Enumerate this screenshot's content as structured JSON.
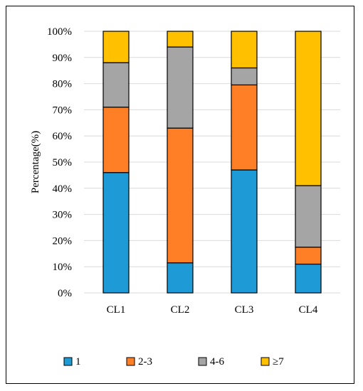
{
  "chart_data": {
    "type": "bar",
    "stacked": true,
    "categories": [
      "CL1",
      "CL2",
      "CL3",
      "CL4"
    ],
    "series": [
      {
        "name": "1",
        "color": "#1E9BD7",
        "values": [
          46,
          11.5,
          47,
          11
        ]
      },
      {
        "name": "2-3",
        "color": "#FF7F27",
        "values": [
          25,
          51.5,
          32.5,
          6.5
        ]
      },
      {
        "name": "4-6",
        "color": "#A5A5A5",
        "values": [
          17,
          31,
          6.5,
          23.5
        ]
      },
      {
        "name": "≥7",
        "color": "#FFC000",
        "values": [
          12,
          6,
          14,
          59
        ]
      }
    ],
    "ylabel": "Percentage(%)",
    "ylim": [
      0,
      100
    ],
    "yticks": [
      0,
      10,
      20,
      30,
      40,
      50,
      60,
      70,
      80,
      90,
      100
    ],
    "ytick_labels": [
      "0%",
      "10%",
      "20%",
      "30%",
      "40%",
      "50%",
      "60%",
      "70%",
      "80%",
      "90%",
      "100%"
    ],
    "grid": true,
    "legend_position": "bottom"
  }
}
